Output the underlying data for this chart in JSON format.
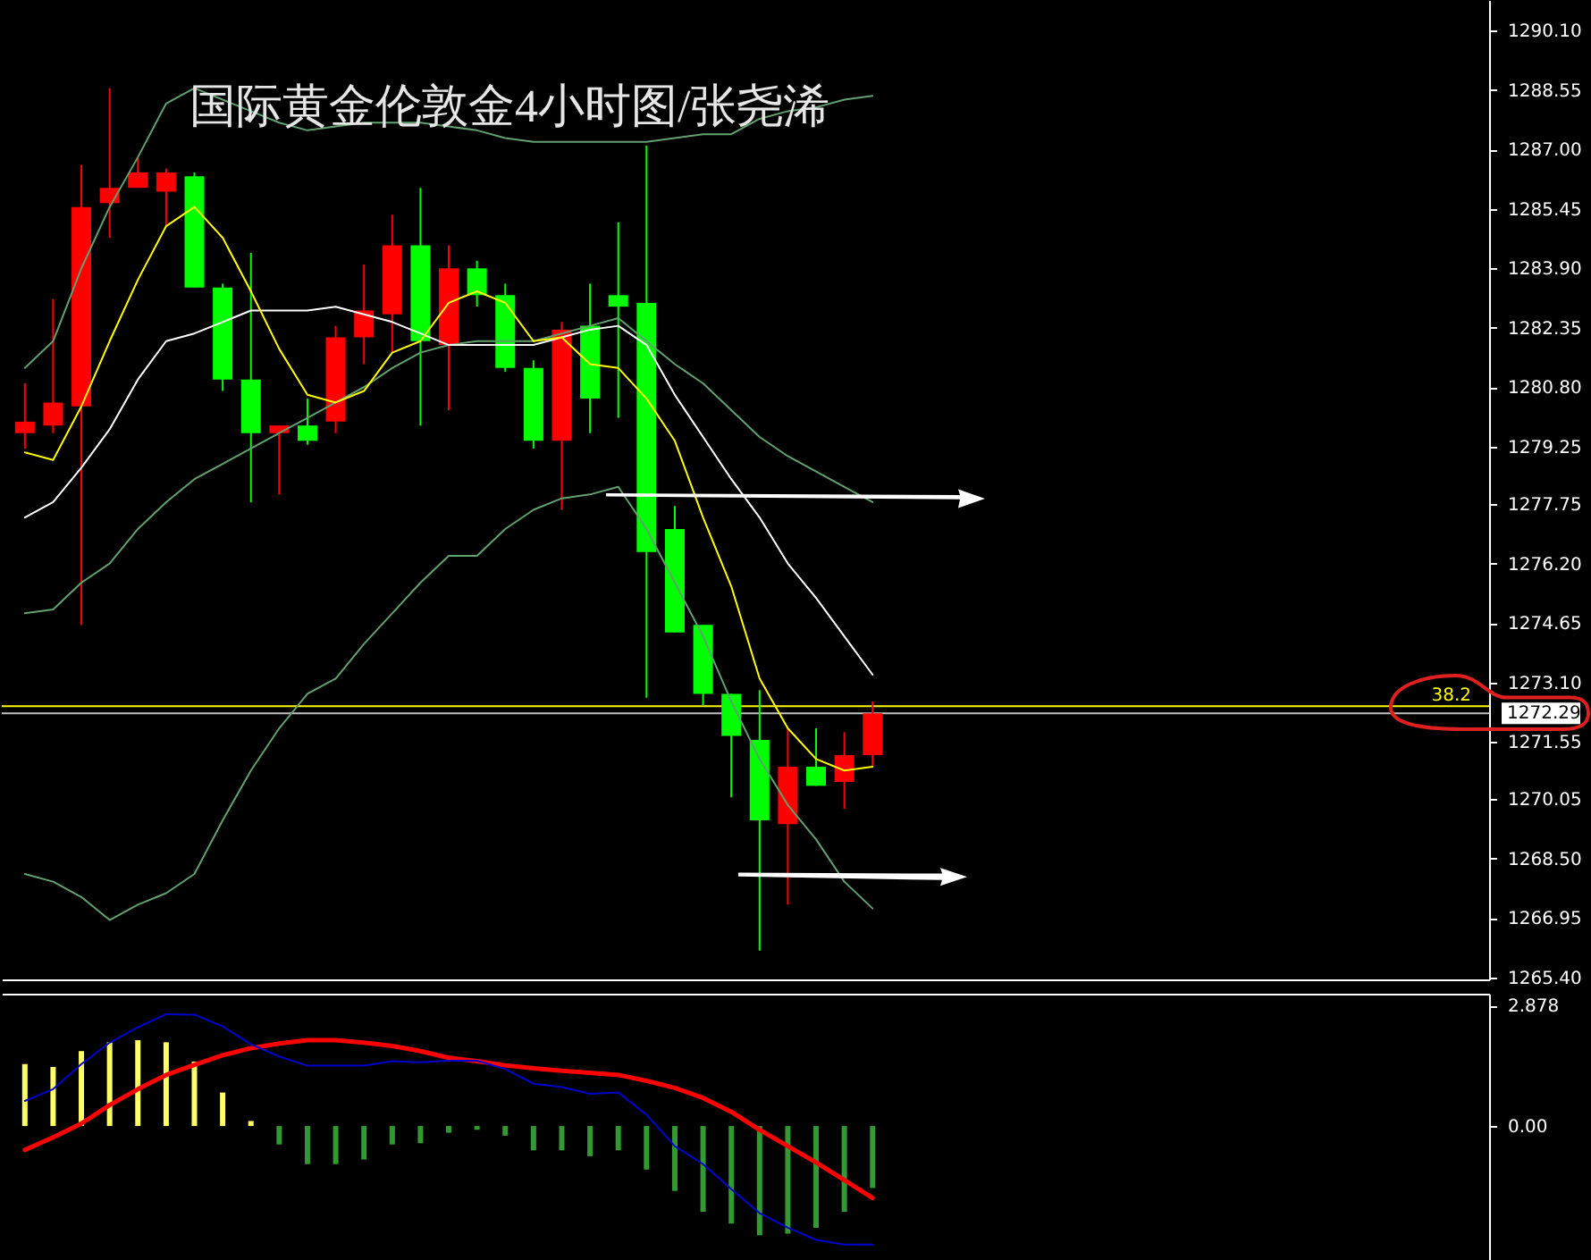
{
  "chart_data": [
    {
      "type": "candlestick",
      "title": "国际黄金伦敦金4小时图/张尧浠",
      "categories": [
        null,
        null,
        null,
        null,
        null,
        null,
        null,
        null,
        null,
        null,
        null,
        null,
        null,
        null,
        null,
        null,
        null,
        null,
        null,
        null,
        null,
        null,
        null,
        null,
        null,
        null,
        null,
        null,
        null,
        null,
        null,
        null,
        null,
        null,
        null,
        null,
        null,
        null,
        null,
        null,
        null,
        null,
        null,
        null,
        null,
        null,
        null,
        null,
        null,
        null,
        null,
        null
      ],
      "ohlc": [
        [
          1279.6,
          1280.9,
          1279.2,
          1279.9
        ],
        [
          1279.8,
          1283.1,
          1279.6,
          1280.4
        ],
        [
          1280.3,
          1286.6,
          1274.6,
          1285.5
        ],
        [
          1285.6,
          1288.6,
          1284.7,
          1286.0
        ],
        [
          1286.0,
          1286.8,
          1286.0,
          1286.4
        ],
        [
          1285.9,
          1286.5,
          1285.0,
          1286.4
        ],
        [
          1286.3,
          1286.4,
          1283.4,
          1283.4
        ],
        [
          1283.4,
          1283.5,
          1280.7,
          1281.0
        ],
        [
          1281.0,
          1284.3,
          1277.8,
          1279.6
        ],
        [
          1279.6,
          1279.8,
          1278.0,
          1279.8
        ],
        [
          1279.8,
          1280.5,
          1279.3,
          1279.4
        ],
        [
          1279.9,
          1282.4,
          1279.6,
          1282.1
        ],
        [
          1282.1,
          1284.0,
          1281.4,
          1282.8
        ],
        [
          1282.7,
          1285.3,
          1281.7,
          1284.5
        ],
        [
          1284.5,
          1286.0,
          1279.8,
          1282.0
        ],
        [
          1281.9,
          1284.5,
          1280.2,
          1283.9
        ],
        [
          1283.9,
          1284.1,
          1282.9,
          1283.2
        ],
        [
          1283.2,
          1283.5,
          1281.2,
          1281.3
        ],
        [
          1281.3,
          1281.5,
          1279.2,
          1279.4
        ],
        [
          1279.4,
          1282.5,
          1277.6,
          1282.3
        ],
        [
          1282.4,
          1283.5,
          1279.6,
          1280.5
        ],
        [
          1283.2,
          1285.1,
          1280.0,
          1282.9
        ],
        [
          1283.0,
          1287.1,
          1272.7,
          1276.5
        ],
        [
          1277.1,
          1277.7,
          1274.4,
          1274.4
        ],
        [
          1274.6,
          1274.6,
          1272.5,
          1272.8
        ],
        [
          1272.8,
          1272.8,
          1270.1,
          1271.7
        ],
        [
          1271.6,
          1272.9,
          1266.1,
          1269.5
        ],
        [
          1269.4,
          1271.9,
          1267.3,
          1270.9
        ],
        [
          1270.9,
          1271.9,
          1270.4,
          1270.4
        ],
        [
          1270.5,
          1271.8,
          1269.8,
          1271.2
        ],
        [
          1271.2,
          1272.6,
          1270.9,
          1272.29
        ],
        null,
        null,
        null,
        null,
        null,
        null,
        null,
        null,
        null,
        null,
        null,
        null,
        null,
        null,
        null,
        null,
        null,
        null,
        null,
        null,
        null
      ],
      "colors": [
        "#ff0000",
        "#ff0000",
        "#ff0000",
        "#ff0000",
        "#ff0000",
        "#ff0000",
        "#00ff00",
        "#00ff00",
        "#00ff00",
        "#ff0000",
        "#00ff00",
        "#ff0000",
        "#ff0000",
        "#ff0000",
        "#00ff00",
        "#ff0000",
        "#00ff00",
        "#00ff00",
        "#00ff00",
        "#ff0000",
        "#00ff00",
        "#00ff00",
        "#00ff00",
        "#00ff00",
        "#00ff00",
        "#00ff00",
        "#00ff00",
        "#ff0000",
        "#00ff00",
        "#ff0000",
        "#ff0000",
        null,
        null,
        null,
        null,
        null,
        null,
        null,
        null,
        null,
        null,
        null,
        null,
        null,
        null,
        null,
        null,
        null,
        null,
        null,
        null,
        null
      ],
      "series": [
        {
          "type": "line",
          "color": "#62a070",
          "values": [
            1281.3,
            1282.0,
            1283.9,
            1285.5,
            1286.8,
            1288.2,
            1288.6,
            1288.3,
            1288.0,
            1287.7,
            1287.5,
            1287.6,
            1287.7,
            1287.7,
            1287.7,
            1287.6,
            1287.5,
            1287.3,
            1287.2,
            1287.2,
            1287.2,
            1287.2,
            1287.2,
            1287.3,
            1287.4,
            1287.4,
            1287.8,
            1288.0,
            1288.1,
            1288.3,
            1288.4,
            null,
            null,
            null,
            null,
            null,
            null,
            null,
            null,
            null,
            null,
            null,
            null,
            null,
            null,
            null,
            null,
            null,
            null,
            null,
            null,
            null
          ]
        },
        {
          "type": "line",
          "color": "#62a070",
          "values": [
            1274.9,
            1275.0,
            1275.7,
            1276.2,
            1277.1,
            1277.8,
            1278.4,
            1278.8,
            1279.2,
            1279.6,
            1280.0,
            1280.4,
            1280.8,
            1281.3,
            1281.7,
            1281.9,
            1282.0,
            1282.0,
            1282.0,
            1282.2,
            1282.4,
            1282.6,
            1282.0,
            1281.4,
            1280.9,
            1280.2,
            1279.5,
            1279.0,
            1278.6,
            1278.2,
            1277.8,
            null,
            null,
            null,
            null,
            null,
            null,
            null,
            null,
            null,
            null,
            null,
            null,
            null,
            null,
            null,
            null,
            null,
            null,
            null,
            null,
            null
          ]
        },
        {
          "type": "line",
          "color": "#62a070",
          "values": [
            1268.1,
            1267.9,
            1267.5,
            1266.9,
            1267.3,
            1267.6,
            1268.1,
            1269.5,
            1270.8,
            1271.9,
            1272.8,
            1273.2,
            1274.1,
            1274.9,
            1275.7,
            1276.4,
            1276.4,
            1277.1,
            1277.6,
            1277.9,
            1278.0,
            1278.2,
            1277.1,
            1275.7,
            1274.3,
            1272.6,
            1271.1,
            1269.9,
            1269.0,
            1267.9,
            1267.2,
            null,
            null,
            null,
            null,
            null,
            null,
            null,
            null,
            null,
            null,
            null,
            null,
            null,
            null,
            null,
            null,
            null,
            null,
            null,
            null,
            null
          ]
        },
        {
          "type": "line",
          "color": "#ffffff",
          "values": [
            1277.4,
            1277.8,
            1278.7,
            1279.7,
            1281.0,
            1282.0,
            1282.2,
            1282.5,
            1282.8,
            1282.8,
            1282.8,
            1282.9,
            1282.7,
            1282.5,
            1282.2,
            1281.9,
            1281.9,
            1281.9,
            1281.9,
            1282.1,
            1282.3,
            1282.4,
            1281.9,
            1280.6,
            1279.5,
            1278.4,
            1277.4,
            1276.2,
            1275.3,
            1274.3,
            1273.3,
            null,
            null,
            null,
            null,
            null,
            null,
            null,
            null,
            null,
            null,
            null,
            null,
            null,
            null,
            null,
            null,
            null,
            null,
            null,
            null,
            null
          ]
        },
        {
          "type": "line",
          "color": "#ffff00",
          "values": [
            1279.1,
            1278.9,
            1280.3,
            1282.0,
            1283.6,
            1285.0,
            1285.5,
            1284.7,
            1283.3,
            1281.8,
            1280.6,
            1280.4,
            1280.7,
            1281.7,
            1282.0,
            1283.0,
            1283.3,
            1283.0,
            1282.0,
            1282.1,
            1281.4,
            1281.3,
            1280.5,
            1279.4,
            1277.4,
            1275.6,
            1273.2,
            1271.9,
            1271.1,
            1270.8,
            1270.9,
            null,
            null,
            null,
            null,
            null,
            null,
            null,
            null,
            null,
            null,
            null,
            null,
            null,
            null,
            null,
            null,
            null,
            null,
            null,
            null,
            null
          ]
        }
      ],
      "ylim": [
        1265.35,
        1290.9
      ],
      "yticks": [
        {
          "value": 1290.1,
          "label": "1290.10"
        },
        1288.55,
        {
          "value": 1287,
          "label": "1287.00"
        },
        1285.45,
        {
          "value": 1283.9,
          "label": "1283.90"
        },
        1282.35,
        {
          "value": 1280.8,
          "label": "1280.80"
        },
        1279.25,
        1277.75,
        {
          "value": 1276.2,
          "label": "1276.20"
        },
        1274.65,
        {
          "value": 1273.1,
          "label": "1273.10"
        },
        1271.55,
        1270.05,
        {
          "value": 1268.5,
          "label": "1268.50"
        },
        1266.95,
        {
          "value": 1265.4,
          "label": "1265.40"
        }
      ],
      "ref_lines": [
        {
          "axis": "y",
          "value": 1272.29,
          "label": "1272.29",
          "color": "#c0c0c0"
        },
        {
          "axis": "y",
          "value": 1272.48,
          "color": "#ffff00"
        }
      ],
      "annotations": [
        {
          "text": "38.2",
          "y": 1272.48
        }
      ],
      "tick_labels": "y"
    },
    {
      "type": "bar",
      "categories": [
        null,
        null,
        null,
        null,
        null,
        null,
        null,
        null,
        null,
        null,
        null,
        null,
        null,
        null,
        null,
        null,
        null,
        null,
        null,
        null,
        null,
        null,
        null,
        null,
        null,
        null,
        null,
        null,
        null,
        null,
        null,
        null,
        null,
        null,
        null,
        null,
        null,
        null,
        null,
        null,
        null,
        null,
        null,
        null,
        null,
        null,
        null,
        null,
        null,
        null,
        null,
        null
      ],
      "series": [
        {
          "type": "bar",
          "colors": [
            "#ffff66",
            "#ffff66",
            "#ffff66",
            "#ffff66",
            "#ffff66",
            "#ffff66",
            "#ffff66",
            "#ffff66",
            "#ffff66",
            "#339933",
            "#339933",
            "#339933",
            "#339933",
            "#339933",
            "#339933",
            "#339933",
            "#339933",
            "#339933",
            "#339933",
            "#339933",
            "#339933",
            "#339933",
            "#339933",
            "#339933",
            "#339933",
            "#339933",
            "#339933",
            "#339933",
            "#339933",
            "#339933",
            "#339933",
            null,
            null,
            null,
            null,
            null,
            null,
            null,
            null,
            null,
            null,
            null,
            null,
            null,
            null,
            null,
            null,
            null,
            null,
            null,
            null,
            null
          ],
          "values": [
            1.48,
            1.41,
            1.79,
            2.0,
            2.05,
            2.0,
            1.54,
            0.8,
            0.12,
            -0.44,
            -0.91,
            -0.91,
            -0.8,
            -0.44,
            -0.41,
            -0.16,
            -0.09,
            -0.23,
            -0.58,
            -0.58,
            -0.72,
            -0.58,
            -1.04,
            -1.55,
            -2.05,
            -2.33,
            -2.61,
            -2.57,
            -2.43,
            -2.05,
            -1.48,
            null,
            null,
            null,
            null,
            null,
            null,
            null,
            null,
            null,
            null,
            null,
            null,
            null,
            null,
            null,
            null,
            null,
            null,
            null,
            null,
            null
          ]
        },
        {
          "type": "line",
          "color": "#ff0000",
          "values": [
            -0.57,
            -0.27,
            0.06,
            0.5,
            0.88,
            1.22,
            1.46,
            1.69,
            1.86,
            1.97,
            2.05,
            2.05,
            1.99,
            1.91,
            1.79,
            1.63,
            1.55,
            1.45,
            1.38,
            1.32,
            1.27,
            1.22,
            1.08,
            0.91,
            0.67,
            0.34,
            -0.09,
            -0.48,
            -0.87,
            -1.29,
            -1.72,
            null,
            null,
            null,
            null,
            null,
            null,
            null,
            null,
            null,
            null,
            null,
            null,
            null,
            null,
            null,
            null,
            null,
            null,
            null,
            null,
            null
          ]
        },
        {
          "type": "line",
          "color": "#0000cc",
          "values": [
            0.6,
            0.88,
            1.48,
            1.99,
            2.36,
            2.67,
            2.66,
            2.38,
            1.95,
            1.66,
            1.44,
            1.44,
            1.44,
            1.55,
            1.52,
            1.56,
            1.56,
            1.36,
            1.01,
            0.93,
            0.77,
            0.8,
            0.27,
            -0.48,
            -0.91,
            -1.51,
            -2.08,
            -2.43,
            -2.72,
            -2.83,
            -2.83,
            null,
            null,
            null,
            null,
            null,
            null,
            null,
            null,
            null,
            null,
            null,
            null,
            null,
            null,
            null,
            null,
            null,
            null,
            null,
            null,
            null
          ]
        }
      ],
      "ylim": [
        -3.37,
        3.16
      ],
      "yticks": [
        2.878,
        {
          "value": 0,
          "label": "0.00"
        }
      ],
      "tick_labels": "y"
    }
  ]
}
